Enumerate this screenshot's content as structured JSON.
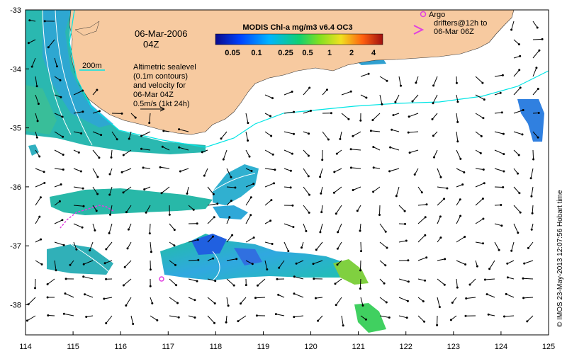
{
  "map": {
    "date_line1": "06-Mar-2006",
    "date_line2": "04Z",
    "scale_label": "200m",
    "annotation": [
      "Altimetric sealevel",
      "(0.1m contours)",
      "and velocity for",
      "06-Mar 04Z",
      "0.5m/s (1kt 24h)"
    ],
    "argo_legend": [
      "Argo",
      "drifters@12h to",
      "06-Mar 06Z"
    ],
    "credit": "© IMOS 23-May-2013 12:07:56 Hobart time"
  },
  "colorbar": {
    "title": "MODIS Chl-a mg/m3 v6.4 OC3",
    "labels": [
      "0.05",
      "0.1",
      "0.25",
      "0.5",
      "1",
      "2",
      "4"
    ]
  },
  "axes": {
    "x_ticks": [
      "114",
      "115",
      "116",
      "117",
      "118",
      "119",
      "120",
      "121",
      "122",
      "123",
      "124",
      "125"
    ],
    "y_ticks": [
      "-33",
      "-34",
      "-35",
      "-36",
      "-37",
      "-38"
    ]
  },
  "colors": {
    "land": "#f7caa0",
    "ocean": "#ffffff",
    "contour": "#00e5e5",
    "argo": "#e040e0"
  }
}
